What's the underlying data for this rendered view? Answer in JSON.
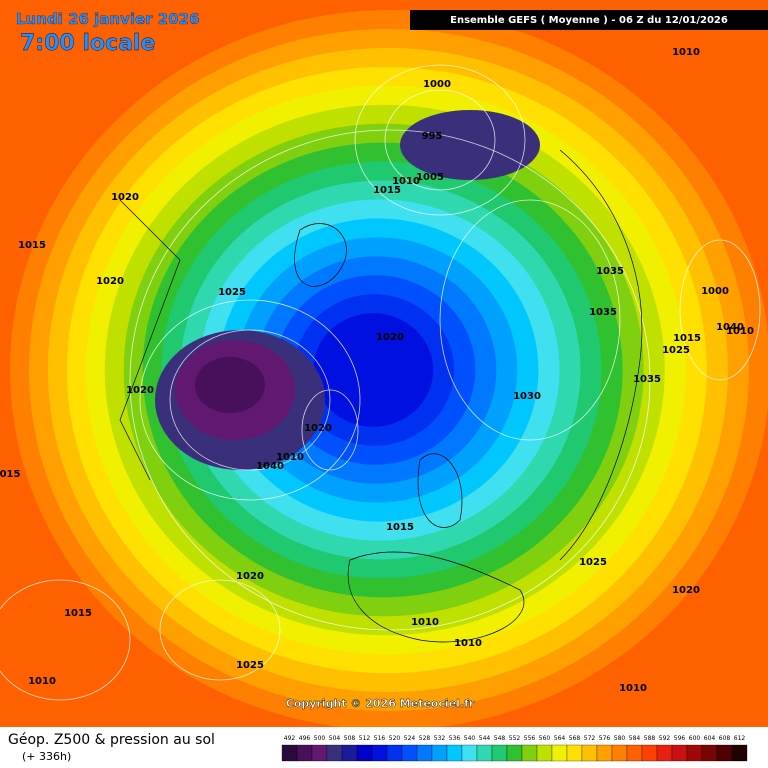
{
  "header": {
    "date": "Lundi 26 janvier 2026",
    "time": "7:00 locale",
    "run": "Ensemble GEFS  ( Moyenne )  -  06 Z du 12/01/2026"
  },
  "isobar_labels": [
    "1010",
    "1000",
    "995",
    "1005",
    "1010",
    "1015",
    "1020",
    "1015",
    "1020",
    "1025",
    "1035",
    "1035",
    "1000",
    "1015",
    "1025",
    "1020",
    "1020",
    "1035",
    "1030",
    "1020",
    "1010",
    "1040",
    "1015",
    "1025",
    "1020",
    "1020",
    "1015",
    "1010",
    "1010",
    "1025",
    "1010",
    "1010",
    "015",
    "1040",
    "1010"
  ],
  "copyright": "Copyright © 2026 Meteociel.fr",
  "footer": {
    "title": "Géop. Z500 & pression au sol",
    "lead": "(+ 336h)"
  },
  "legend": {
    "levels": [
      492,
      496,
      500,
      504,
      508,
      512,
      516,
      520,
      524,
      528,
      532,
      536,
      540,
      544,
      548,
      552,
      556,
      560,
      564,
      568,
      572,
      576,
      580,
      584,
      588,
      592,
      596,
      600,
      604,
      608,
      612
    ],
    "colors": [
      "#2a0a3a",
      "#48105a",
      "#601870",
      "#3a2f7a",
      "#1a1a9a",
      "#0000c8",
      "#0010e0",
      "#0030f0",
      "#0050ff",
      "#0078ff",
      "#00a0ff",
      "#00c8ff",
      "#40e0f0",
      "#30d8b0",
      "#20c870",
      "#30c030",
      "#80d010",
      "#c0e000",
      "#f0f000",
      "#ffe000",
      "#ffc000",
      "#ffa000",
      "#ff8000",
      "#ff6000",
      "#ff4000",
      "#e82010",
      "#c81010",
      "#a00808",
      "#780404",
      "#500000",
      "#200000"
    ]
  }
}
